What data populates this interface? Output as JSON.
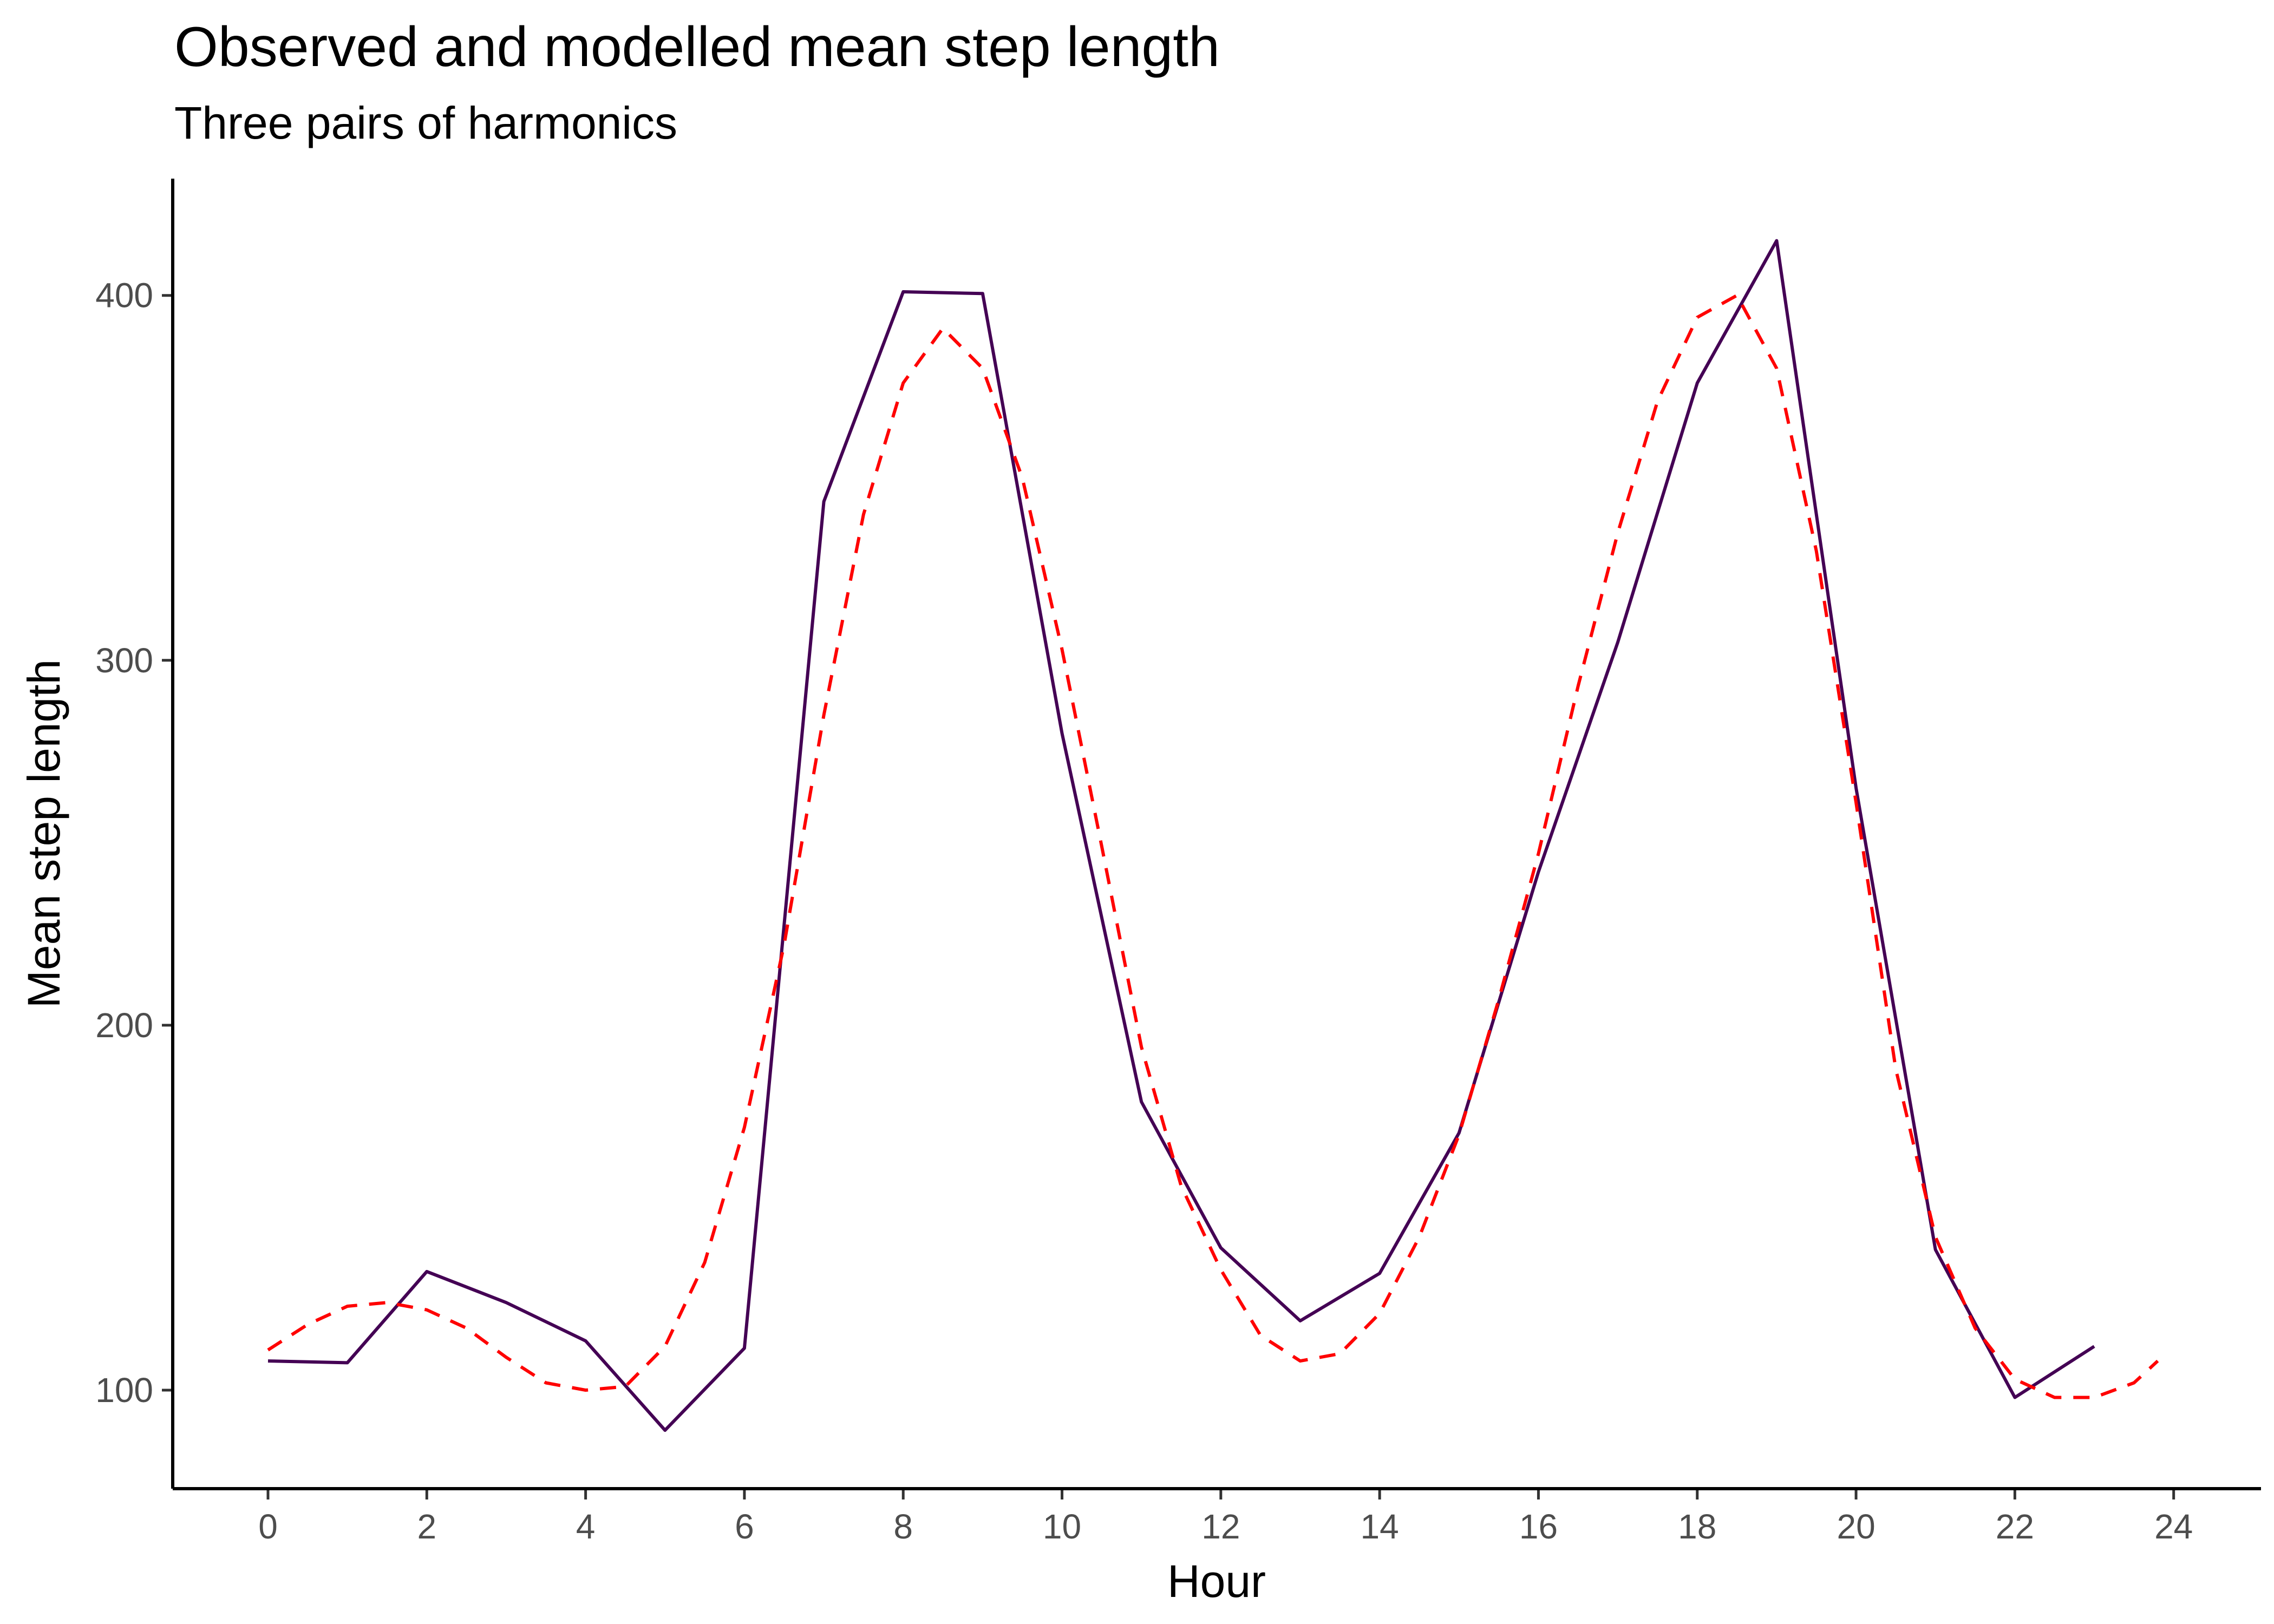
{
  "chart_data": {
    "type": "line",
    "title": "Observed and modelled mean step length",
    "subtitle": "Three pairs of harmonics",
    "xlabel": "Hour",
    "ylabel": "Mean step length",
    "xlim": [
      -1.2,
      25.1
    ],
    "ylim": [
      73,
      432
    ],
    "x_ticks": [
      0,
      2,
      4,
      6,
      8,
      10,
      12,
      14,
      16,
      18,
      20,
      22,
      24
    ],
    "x_tick_labels": [
      "0",
      "2",
      "4",
      "6",
      "8",
      "10",
      "12",
      "14",
      "16",
      "18",
      "20",
      "22",
      "24"
    ],
    "y_ticks": [
      100,
      200,
      300,
      400
    ],
    "y_tick_labels": [
      "100",
      "200",
      "300",
      "400"
    ],
    "grid": false,
    "legend": "none",
    "series": [
      {
        "style": "solid",
        "color": "#440154",
        "x": [
          0,
          1,
          2,
          3,
          4,
          5,
          6,
          7,
          8,
          9,
          10,
          11,
          12,
          13,
          14,
          15,
          16,
          17,
          18,
          19,
          20,
          21,
          22,
          23
        ],
        "y": [
          108,
          107.5,
          132.5,
          124,
          113.5,
          89,
          111.5,
          343.5,
          401,
          400.5,
          280,
          179,
          139,
          119,
          132,
          170.5,
          242,
          305,
          376,
          415,
          265,
          138.5,
          98,
          112
        ]
      },
      {
        "style": "dashed",
        "color": "#ff0000",
        "x": [
          0,
          0.5,
          1,
          1.5,
          2,
          2.5,
          3,
          3.5,
          4,
          4.5,
          5,
          5.5,
          6,
          6.5,
          7,
          7.5,
          8,
          8.5,
          9,
          9.5,
          10,
          10.5,
          11,
          11.5,
          12,
          12.5,
          13,
          13.5,
          14,
          14.5,
          15,
          15.5,
          16,
          16.5,
          17,
          17.5,
          18,
          18.5,
          19,
          19.5,
          20,
          20.5,
          21,
          21.5,
          22,
          22.5,
          23,
          23.5,
          23.8
        ],
        "y": [
          111,
          118,
          123,
          124,
          122,
          117,
          109,
          102,
          100,
          101,
          112,
          135,
          172,
          222,
          285,
          340,
          376,
          391,
          380,
          350,
          303,
          249,
          194,
          156,
          133,
          115,
          108,
          110,
          121,
          142,
          170,
          207,
          247,
          293,
          335,
          371,
          394,
          400,
          380,
          330,
          261,
          188,
          142,
          117,
          103,
          98,
          98,
          102,
          108
        ]
      }
    ]
  }
}
